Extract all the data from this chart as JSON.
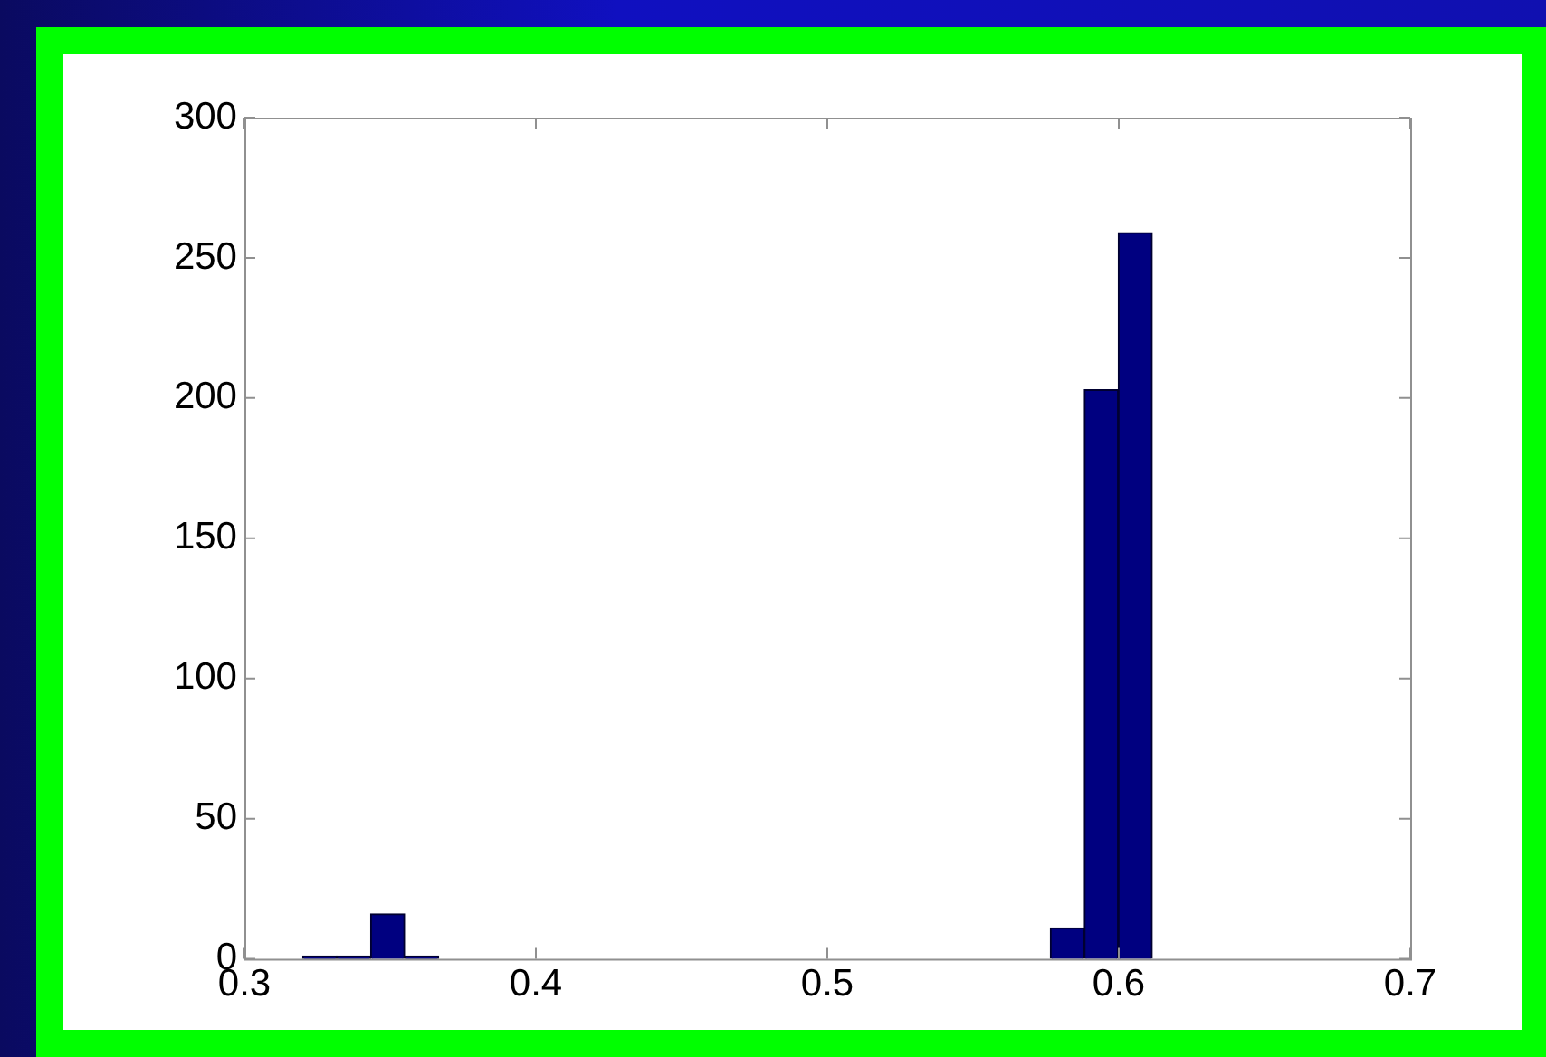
{
  "chart_data": {
    "type": "histogram",
    "bins": [
      0.32,
      0.3317,
      0.3433,
      0.355,
      0.3666,
      0.3783,
      0.39,
      0.4016,
      0.4133,
      0.4249,
      0.4366,
      0.4483,
      0.4599,
      0.4716,
      0.4832,
      0.4949,
      0.5066,
      0.5182,
      0.5299,
      0.5415,
      0.5532,
      0.5649,
      0.5765,
      0.5882,
      0.5998,
      0.6115
    ],
    "values": [
      1,
      1,
      16,
      1,
      0,
      0,
      0,
      0,
      0,
      0,
      0,
      0,
      0,
      0,
      0,
      0,
      0,
      0,
      0,
      0,
      0,
      0,
      11,
      203,
      259
    ],
    "color": "#000080",
    "xlim": [
      0.3,
      0.7
    ],
    "xticks": [
      0.3,
      0.4,
      0.5,
      0.6,
      0.7
    ],
    "ylim": [
      0,
      300
    ],
    "yticks": [
      0,
      50,
      100,
      150,
      200,
      250,
      300
    ],
    "grid": false,
    "legend": false
  }
}
